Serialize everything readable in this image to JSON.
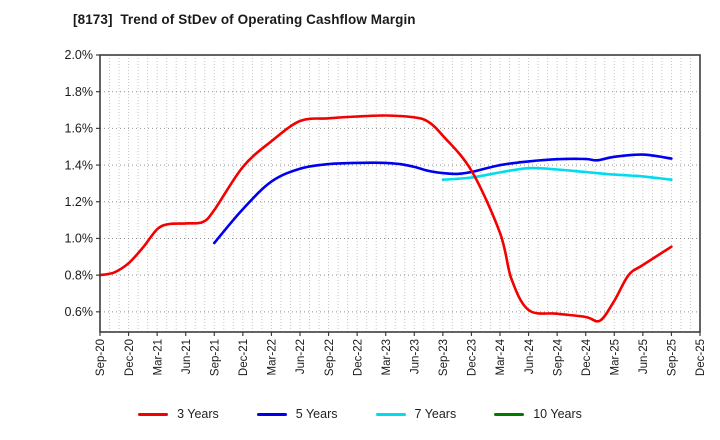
{
  "chart_data": {
    "type": "line",
    "title": "[8173]  Trend of StDev of Operating Cashflow Margin",
    "xlabel": "",
    "ylabel": "",
    "y_tick_format": "percent",
    "y_ticks": [
      {
        "label": "2.0%",
        "value": 2.0
      },
      {
        "label": "1.8%",
        "value": 1.8
      },
      {
        "label": "1.6%",
        "value": 1.6
      },
      {
        "label": "1.4%",
        "value": 1.4
      },
      {
        "label": "1.2%",
        "value": 1.2
      },
      {
        "label": "1.0%",
        "value": 1.0
      },
      {
        "label": "0.8%",
        "value": 0.8
      },
      {
        "label": "0.6%",
        "value": 0.6
      }
    ],
    "ylim": [
      0.49,
      2.0
    ],
    "x_tick_labels": [
      "Sep-20",
      "Dec-20",
      "Mar-21",
      "Jun-21",
      "Sep-21",
      "Dec-21",
      "Mar-22",
      "Jun-22",
      "Sep-22",
      "Dec-22",
      "Mar-23",
      "Jun-23",
      "Sep-23",
      "Dec-23",
      "Mar-24",
      "Jun-24",
      "Sep-24",
      "Dec-24",
      "Mar-25",
      "Jun-25",
      "Sep-25",
      "Dec-25"
    ],
    "x_tick_rotation": 90,
    "x_minor_grid": "monthly",
    "grid": true,
    "legend_position": "bottom",
    "series": [
      {
        "name": "3 Years",
        "color": "#f40000",
        "points": [
          [
            0,
            0.8
          ],
          [
            0.5,
            0.815
          ],
          [
            1,
            0.865
          ],
          [
            1.5,
            0.95
          ],
          [
            2,
            1.05
          ],
          [
            2.4,
            1.078
          ],
          [
            3,
            1.082
          ],
          [
            3.6,
            1.09
          ],
          [
            4,
            1.155
          ],
          [
            5,
            1.39
          ],
          [
            6,
            1.53
          ],
          [
            7,
            1.64
          ],
          [
            8,
            1.655
          ],
          [
            9,
            1.665
          ],
          [
            10,
            1.67
          ],
          [
            11,
            1.66
          ],
          [
            11.5,
            1.635
          ],
          [
            12,
            1.56
          ],
          [
            13,
            1.37
          ],
          [
            14,
            1.03
          ],
          [
            14.4,
            0.78
          ],
          [
            15,
            0.61
          ],
          [
            16,
            0.59
          ],
          [
            17,
            0.572
          ],
          [
            17.5,
            0.552
          ],
          [
            18,
            0.66
          ],
          [
            18.5,
            0.8
          ],
          [
            19,
            0.855
          ],
          [
            20,
            0.955
          ]
        ]
      },
      {
        "name": "5 Years",
        "color": "#0000ee",
        "points": [
          [
            4,
            0.975
          ],
          [
            5,
            1.16
          ],
          [
            6,
            1.31
          ],
          [
            7,
            1.38
          ],
          [
            8,
            1.405
          ],
          [
            9,
            1.412
          ],
          [
            10,
            1.412
          ],
          [
            10.5,
            1.405
          ],
          [
            11,
            1.39
          ],
          [
            11.5,
            1.368
          ],
          [
            12,
            1.356
          ],
          [
            12.5,
            1.352
          ],
          [
            13,
            1.362
          ],
          [
            14,
            1.4
          ],
          [
            15,
            1.42
          ],
          [
            16,
            1.432
          ],
          [
            17,
            1.433
          ],
          [
            17.4,
            1.426
          ],
          [
            18,
            1.445
          ],
          [
            19,
            1.457
          ],
          [
            20,
            1.435
          ]
        ]
      },
      {
        "name": "7 Years",
        "color": "#00dcee",
        "points": [
          [
            12,
            1.32
          ],
          [
            13,
            1.332
          ],
          [
            14,
            1.36
          ],
          [
            15,
            1.383
          ],
          [
            16,
            1.376
          ],
          [
            17,
            1.362
          ],
          [
            18,
            1.348
          ],
          [
            19,
            1.338
          ],
          [
            20,
            1.32
          ]
        ]
      },
      {
        "name": "10 Years",
        "color": "#007a00",
        "points": []
      }
    ],
    "x_axis_note": "quarterly ticks Sep-20 through Dec-25; series values are StDev of operating cashflow margin in %"
  }
}
